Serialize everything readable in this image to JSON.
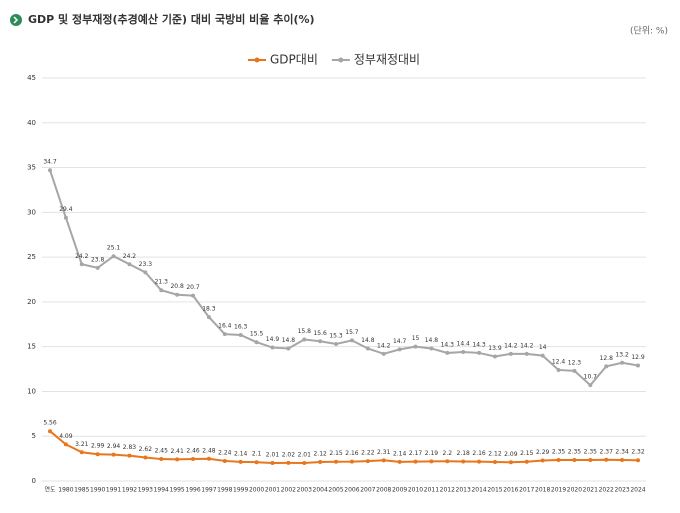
{
  "chart_data": {
    "type": "line",
    "title": "GDP 및 정부재정(추경예산 기준) 대비 국방비 비율 추이(%)",
    "unit_label": "(단위: %)",
    "categories": [
      "연도",
      "1980",
      "1985",
      "1990",
      "1991",
      "1992",
      "1993",
      "1994",
      "1995",
      "1996",
      "1997",
      "1998",
      "1999",
      "2000",
      "2001",
      "2002",
      "2003",
      "2004",
      "2005",
      "2006",
      "2007",
      "2008",
      "2009",
      "2010",
      "2011",
      "2012",
      "2013",
      "2014",
      "2015",
      "2016",
      "2017",
      "2018",
      "2019",
      "2020",
      "2021",
      "2022",
      "2023",
      "2024"
    ],
    "series": [
      {
        "name": "GDP대비",
        "color": "#e8761c",
        "values": [
          5.56,
          4.09,
          3.21,
          2.99,
          2.94,
          2.83,
          2.62,
          2.45,
          2.41,
          2.46,
          2.48,
          2.24,
          2.14,
          2.1,
          2.01,
          2.02,
          2.01,
          2.12,
          2.15,
          2.16,
          2.22,
          2.31,
          2.14,
          2.17,
          2.19,
          2.2,
          2.18,
          2.16,
          2.12,
          2.09,
          2.15,
          2.29,
          2.35,
          2.35,
          2.35,
          2.37,
          2.34,
          2.32
        ]
      },
      {
        "name": "정부재정대비",
        "color": "#a6a6a6",
        "values": [
          34.7,
          29.4,
          24.2,
          23.8,
          25.1,
          24.2,
          23.3,
          21.3,
          20.8,
          20.7,
          18.3,
          16.4,
          16.3,
          15.5,
          14.9,
          14.8,
          15.8,
          15.6,
          15.3,
          15.7,
          14.8,
          14.2,
          14.7,
          15,
          14.8,
          14.3,
          14.4,
          14.3,
          13.9,
          14.2,
          14.2,
          14,
          12.4,
          12.3,
          10.7,
          12.8,
          13.2,
          12.9
        ]
      }
    ],
    "ylim": [
      0,
      45
    ],
    "yticks": [
      0,
      5,
      10,
      15,
      20,
      25,
      30,
      35,
      40,
      45
    ],
    "grid": true,
    "legend": "top"
  }
}
